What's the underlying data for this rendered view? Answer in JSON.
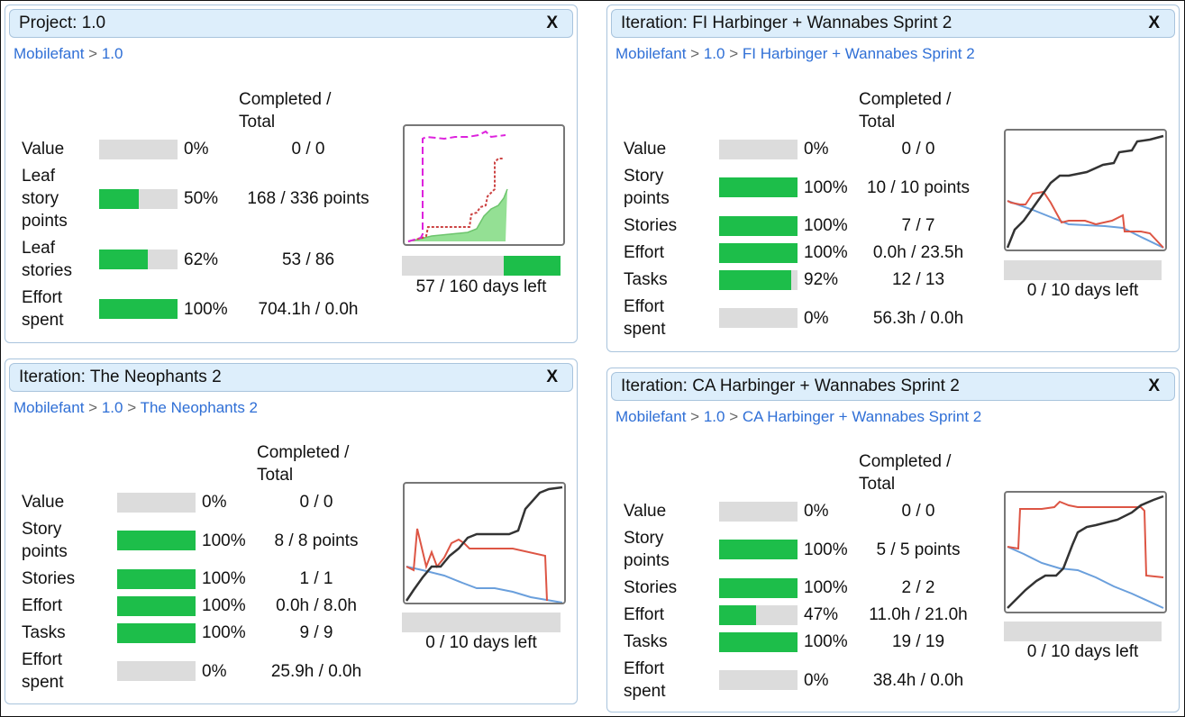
{
  "colors": {
    "bar_fill": "#1dbe4a",
    "bar_bg": "#dcdcdc",
    "header_bg": "#ddeefb",
    "link": "#2f6fd6"
  },
  "close_label": "X",
  "breadcrumb_sep": ">",
  "completed_total_header": [
    "Completed /",
    "Total"
  ],
  "panels": [
    {
      "title": "Project: 1.0",
      "breadcrumb": [
        "Mobilefant",
        "1.0"
      ],
      "rows": [
        {
          "label": [
            "Value"
          ],
          "percent": 0,
          "pct_label": "0%",
          "count": "0 / 0"
        },
        {
          "label": [
            "Leaf",
            "story",
            "points"
          ],
          "percent": 50,
          "pct_label": "50%",
          "count": "168 / 336 points"
        },
        {
          "label": [
            "Leaf",
            "stories"
          ],
          "percent": 62,
          "pct_label": "62%",
          "count": "53 / 86"
        },
        {
          "label": [
            "Effort",
            "spent"
          ],
          "percent": 100,
          "pct_label": "100%",
          "count": "704.1h / 0.0h"
        }
      ],
      "timeline": {
        "elapsed_fraction": 0.36,
        "label": "57 / 160 days left"
      }
    },
    {
      "title": "Iteration: FI Harbinger + Wannabes Sprint 2",
      "breadcrumb": [
        "Mobilefant",
        "1.0",
        "FI Harbinger + Wannabes Sprint 2"
      ],
      "rows": [
        {
          "label": [
            "Value"
          ],
          "percent": 0,
          "pct_label": "0%",
          "count": "0 / 0"
        },
        {
          "label": [
            "Story",
            "points"
          ],
          "percent": 100,
          "pct_label": "100%",
          "count": "10 / 10 points"
        },
        {
          "label": [
            "Stories"
          ],
          "percent": 100,
          "pct_label": "100%",
          "count": "7 / 7"
        },
        {
          "label": [
            "Effort"
          ],
          "percent": 100,
          "pct_label": "100%",
          "count": "0.0h / 23.5h"
        },
        {
          "label": [
            "Tasks"
          ],
          "percent": 92,
          "pct_label": "92%",
          "count": "12 / 13"
        },
        {
          "label": [
            "Effort",
            "spent"
          ],
          "percent": 0,
          "pct_label": "0%",
          "count": "56.3h / 0.0h"
        }
      ],
      "timeline": {
        "elapsed_fraction": 0,
        "label": "0 / 10 days left"
      }
    },
    {
      "title": "Iteration: The Neophants 2",
      "breadcrumb": [
        "Mobilefant",
        "1.0",
        "The Neophants 2"
      ],
      "rows": [
        {
          "label": [
            "Value"
          ],
          "percent": 0,
          "pct_label": "0%",
          "count": "0 / 0"
        },
        {
          "label": [
            "Story",
            "points"
          ],
          "percent": 100,
          "pct_label": "100%",
          "count": "8 / 8 points"
        },
        {
          "label": [
            "Stories"
          ],
          "percent": 100,
          "pct_label": "100%",
          "count": "1 / 1"
        },
        {
          "label": [
            "Effort"
          ],
          "percent": 100,
          "pct_label": "100%",
          "count": "0.0h / 8.0h"
        },
        {
          "label": [
            "Tasks"
          ],
          "percent": 100,
          "pct_label": "100%",
          "count": "9 / 9"
        },
        {
          "label": [
            "Effort",
            "spent"
          ],
          "percent": 0,
          "pct_label": "0%",
          "count": "25.9h / 0.0h"
        }
      ],
      "timeline": {
        "elapsed_fraction": 0,
        "label": "0 / 10 days left"
      }
    },
    {
      "title": "Iteration: CA Harbinger + Wannabes Sprint 2",
      "breadcrumb": [
        "Mobilefant",
        "1.0",
        "CA Harbinger + Wannabes Sprint 2"
      ],
      "rows": [
        {
          "label": [
            "Value"
          ],
          "percent": 0,
          "pct_label": "0%",
          "count": "0 / 0"
        },
        {
          "label": [
            "Story",
            "points"
          ],
          "percent": 100,
          "pct_label": "100%",
          "count": "5 / 5 points"
        },
        {
          "label": [
            "Stories"
          ],
          "percent": 100,
          "pct_label": "100%",
          "count": "2 / 2"
        },
        {
          "label": [
            "Effort"
          ],
          "percent": 47,
          "pct_label": "47%",
          "count": "11.0h / 21.0h"
        },
        {
          "label": [
            "Tasks"
          ],
          "percent": 100,
          "pct_label": "100%",
          "count": "19 / 19"
        },
        {
          "label": [
            "Effort",
            "spent"
          ],
          "percent": 0,
          "pct_label": "0%",
          "count": "38.4h / 0.0h"
        }
      ],
      "timeline": {
        "elapsed_fraction": 0,
        "label": "0 / 10 days left"
      }
    }
  ]
}
